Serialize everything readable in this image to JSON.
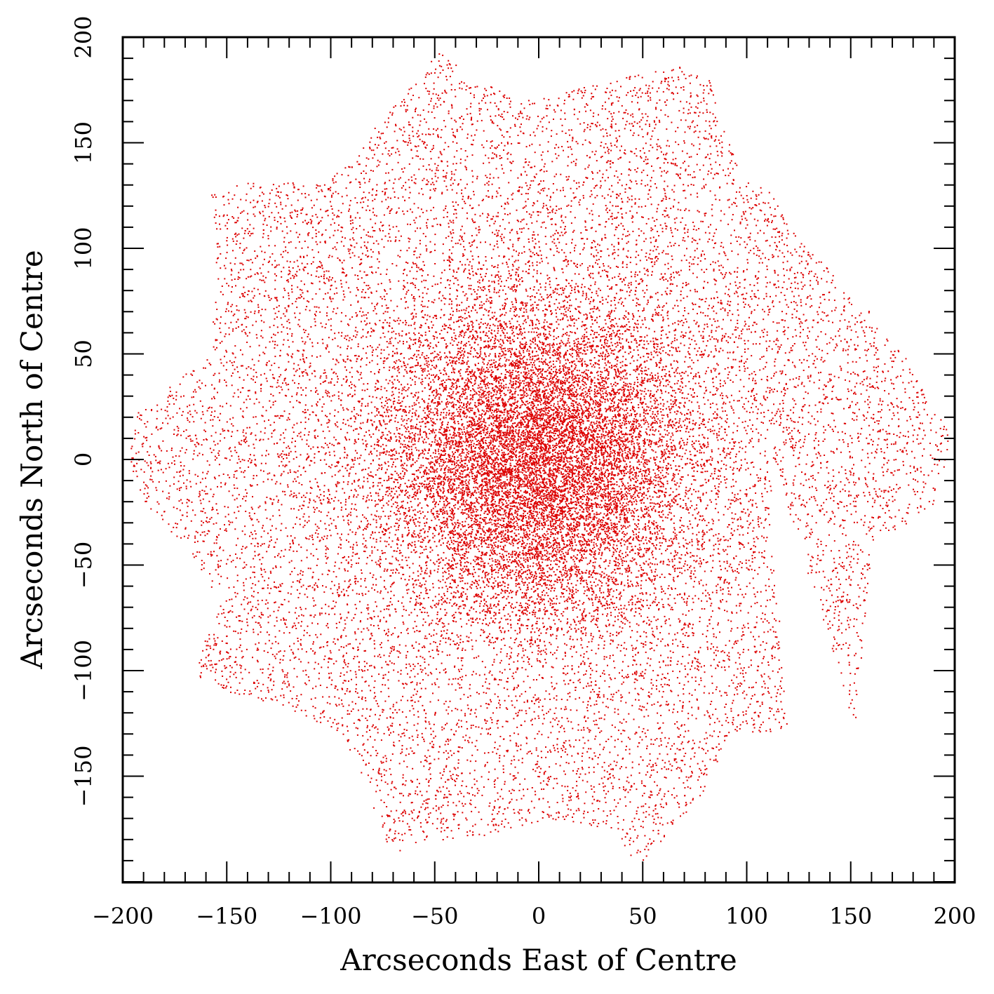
{
  "chart_data": {
    "type": "scatter",
    "title": "",
    "xlabel": "Arcseconds East of Centre",
    "ylabel": "Arcseconds North of Centre",
    "xlim": [
      -200,
      200
    ],
    "ylim": [
      -200,
      200
    ],
    "x_ticks": [
      -200,
      -150,
      -100,
      -50,
      0,
      50,
      100,
      150,
      200
    ],
    "x_tick_labels": [
      "−200",
      "−150",
      "−100",
      "−50",
      "0",
      "50",
      "100",
      "150",
      "200"
    ],
    "y_ticks": [
      -150,
      -100,
      -50,
      0,
      50,
      100,
      150,
      200
    ],
    "y_tick_labels": [
      "−150",
      "−100",
      "−50",
      "0",
      "50",
      "100",
      "150",
      "200"
    ],
    "minor_tick_step": 10,
    "grid": false,
    "legend": "none",
    "marker_color": "#dd0000",
    "point_density": "high concentration at centre, decreasing outward",
    "footprint_outline": [
      [
        -48,
        193
      ],
      [
        -32,
        181
      ],
      [
        -10,
        170
      ],
      [
        10,
        173
      ],
      [
        35,
        180
      ],
      [
        55,
        184
      ],
      [
        72,
        188
      ],
      [
        82,
        180
      ],
      [
        98,
        132
      ],
      [
        110,
        129
      ],
      [
        125,
        104
      ],
      [
        155,
        75
      ],
      [
        178,
        46
      ],
      [
        198,
        11
      ],
      [
        196,
        -5
      ],
      [
        188,
        -25
      ],
      [
        162,
        -38
      ],
      [
        158,
        -60
      ],
      [
        155,
        -100
      ],
      [
        152,
        -128
      ],
      [
        110,
        10
      ],
      [
        120,
        -129
      ],
      [
        105,
        -129
      ],
      [
        92,
        -130
      ],
      [
        78,
        -160
      ],
      [
        55,
        -186
      ],
      [
        48,
        -193
      ],
      [
        35,
        -175
      ],
      [
        5,
        -170
      ],
      [
        -25,
        -178
      ],
      [
        -50,
        -181
      ],
      [
        -68,
        -186
      ],
      [
        -75,
        -181
      ],
      [
        -82,
        -155
      ],
      [
        -95,
        -130
      ],
      [
        -120,
        -118
      ],
      [
        -155,
        -109
      ],
      [
        -165,
        -102
      ],
      [
        -155,
        -68
      ],
      [
        -160,
        -55
      ],
      [
        -173,
        -38
      ],
      [
        -190,
        -20
      ],
      [
        -197,
        0
      ],
      [
        -193,
        22
      ],
      [
        -170,
        40
      ],
      [
        -158,
        50
      ],
      [
        -155,
        95
      ],
      [
        -158,
        130
      ],
      [
        -135,
        131
      ],
      [
        -108,
        131
      ],
      [
        -102,
        130
      ],
      [
        -85,
        150
      ],
      [
        -60,
        178
      ],
      [
        -48,
        193
      ]
    ],
    "footprint_note": "",
    "annotations": []
  }
}
